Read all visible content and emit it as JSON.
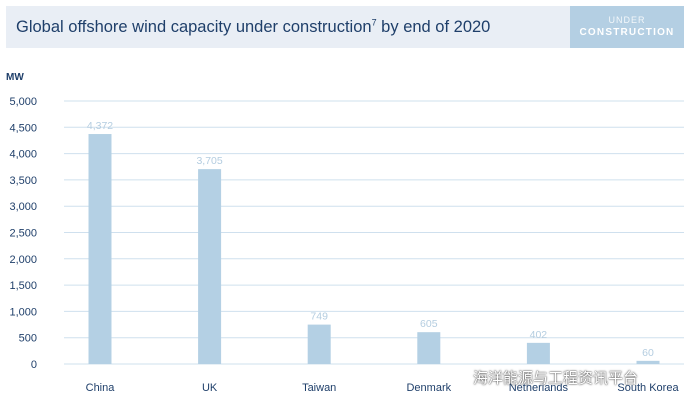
{
  "header": {
    "title": "Global offshore wind capacity under construction",
    "title_sup": "7",
    "title_suffix": " by end of 2020",
    "tag_line1": "UNDER",
    "tag_line2": "CONSTRUCTION"
  },
  "colors": {
    "bar": "#b4d0e4",
    "grid": "#cfe0ee",
    "axis_text": "#1f3f6a",
    "value_label": "#b4cde0",
    "header_bg": "#e9eef5",
    "tag_bg": "#b4cfe3"
  },
  "watermark": {
    "text": "海洋能源与工程资讯平台",
    "icon": "wechat-icon"
  },
  "chart_data": {
    "type": "bar",
    "title": "Global offshore wind capacity under construction7 by end of 2020",
    "ylabel": "MW",
    "xlabel": "",
    "categories": [
      "China",
      "UK",
      "Taiwan",
      "Denmark",
      "Netherlands",
      "South Korea"
    ],
    "values": [
      4372,
      3705,
      749,
      605,
      402,
      60
    ],
    "value_labels": [
      "4,372",
      "3,705",
      "749",
      "605",
      "402",
      "60"
    ],
    "ylim": [
      0,
      5000
    ],
    "yticks": [
      0,
      500,
      1000,
      1500,
      2000,
      2500,
      3000,
      3500,
      4000,
      4500,
      5000
    ],
    "ytick_labels": [
      "0",
      "500",
      "1,000",
      "1,500",
      "2,000",
      "2,500",
      "3,000",
      "3,500",
      "4,000",
      "4,500",
      "5,000"
    ],
    "grid": true,
    "legend": "none"
  }
}
